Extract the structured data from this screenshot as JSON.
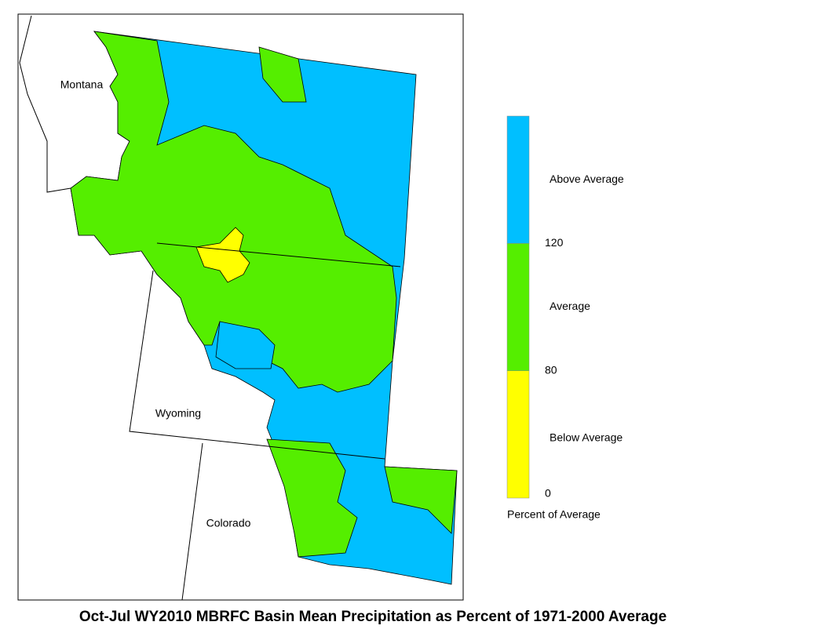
{
  "map": {
    "title": "Oct-Jul WY2010 MBRFC Basin Mean Precipitation as Percent of 1971-2000 Average",
    "states": [
      "Montana",
      "Wyoming",
      "Colorado"
    ],
    "legend": {
      "title": "Percent of Average",
      "classes": [
        {
          "label": "Below Average",
          "color": "#ffff00"
        },
        {
          "label": "Average",
          "color": "#55ee00"
        },
        {
          "label": "Above Average",
          "color": "#00bfff"
        }
      ],
      "ticks": [
        0,
        80,
        120
      ]
    }
  }
}
